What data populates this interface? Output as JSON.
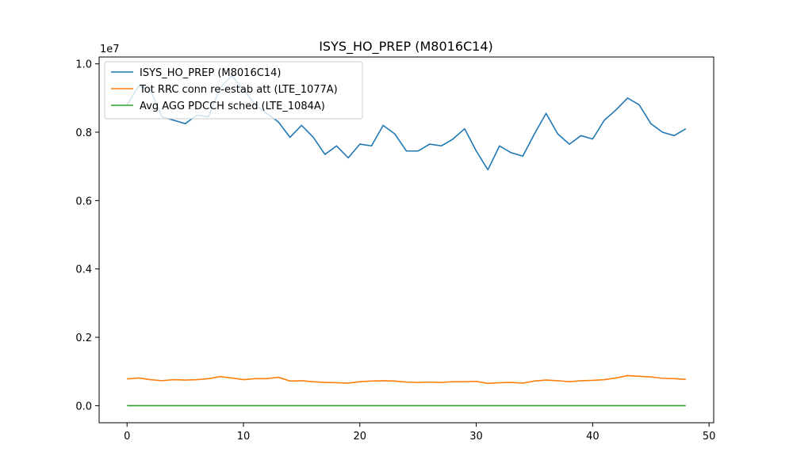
{
  "chart_data": {
    "type": "line",
    "title": "ISYS_HO_PREP (M8016C14)",
    "offset_label": "1e7",
    "xlabel": "",
    "ylabel": "",
    "xlim": [
      -2.4,
      50.4
    ],
    "ylim": [
      -500000,
      10200000
    ],
    "x_ticks": [
      0,
      10,
      20,
      30,
      40,
      50
    ],
    "x_tick_labels": [
      "0",
      "10",
      "20",
      "30",
      "40",
      "50"
    ],
    "y_ticks": [
      0,
      2000000,
      4000000,
      6000000,
      8000000,
      10000000
    ],
    "y_tick_labels": [
      "0.0",
      "0.2",
      "0.4",
      "0.6",
      "0.8",
      "1.0"
    ],
    "grid": false,
    "legend_position": "top-left",
    "x": [
      0,
      1,
      2,
      3,
      4,
      5,
      6,
      7,
      8,
      9,
      10,
      11,
      12,
      13,
      14,
      15,
      16,
      17,
      18,
      19,
      20,
      21,
      22,
      23,
      24,
      25,
      26,
      27,
      28,
      29,
      30,
      31,
      32,
      33,
      34,
      35,
      36,
      37,
      38,
      39,
      40,
      41,
      42,
      43,
      44,
      45,
      46,
      47,
      48
    ],
    "series": [
      {
        "name": "ISYS_HO_PREP (M8016C14)",
        "color": "#1f77b4",
        "values": [
          8800000,
          9350000,
          9250000,
          8450000,
          8350000,
          8250000,
          8500000,
          8450000,
          9300000,
          9650000,
          9250000,
          8800000,
          8550000,
          8300000,
          7850000,
          8200000,
          7850000,
          7350000,
          7600000,
          7250000,
          7650000,
          7600000,
          8200000,
          7950000,
          7450000,
          7450000,
          7650000,
          7600000,
          7800000,
          8100000,
          7450000,
          6900000,
          7600000,
          7400000,
          7300000,
          7950000,
          8550000,
          7950000,
          7650000,
          7900000,
          7800000,
          8350000,
          8650000,
          9000000,
          8800000,
          8250000,
          8000000,
          7900000,
          8100000
        ]
      },
      {
        "name": "Tot RRC conn re-estab att (LTE_1077A)",
        "color": "#ff7f0e",
        "values": [
          780000,
          810000,
          760000,
          730000,
          760000,
          750000,
          760000,
          790000,
          850000,
          810000,
          760000,
          790000,
          790000,
          830000,
          720000,
          730000,
          700000,
          680000,
          670000,
          660000,
          700000,
          720000,
          730000,
          720000,
          690000,
          680000,
          690000,
          680000,
          700000,
          700000,
          710000,
          650000,
          670000,
          680000,
          660000,
          720000,
          750000,
          730000,
          700000,
          730000,
          740000,
          760000,
          810000,
          880000,
          860000,
          840000,
          800000,
          790000,
          770000
        ]
      },
      {
        "name": "Avg AGG PDCCH sched (LTE_1084A)",
        "color": "#2ca02c",
        "values": [
          2,
          2,
          2,
          2,
          2,
          2,
          2,
          2,
          2,
          2,
          2,
          2,
          2,
          2,
          2,
          2,
          2,
          2,
          2,
          2,
          2,
          2,
          2,
          2,
          2,
          2,
          2,
          2,
          2,
          2,
          2,
          2,
          2,
          2,
          2,
          2,
          2,
          2,
          2,
          2,
          2,
          2,
          2,
          2,
          2,
          2,
          2,
          2,
          2
        ]
      }
    ]
  }
}
